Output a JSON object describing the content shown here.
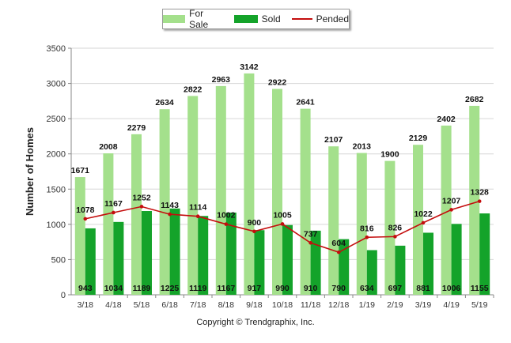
{
  "chart_data": {
    "type": "bar",
    "categories": [
      "3/18",
      "4/18",
      "5/18",
      "6/18",
      "7/18",
      "8/18",
      "9/18",
      "10/18",
      "11/18",
      "12/18",
      "1/19",
      "2/19",
      "3/19",
      "4/19",
      "5/19"
    ],
    "series": [
      {
        "name": "For Sale",
        "type": "bar",
        "color": "#a4e08c",
        "values": [
          1671,
          2008,
          2279,
          2634,
          2822,
          2963,
          3142,
          2922,
          2641,
          2107,
          2013,
          1900,
          2129,
          2402,
          2682
        ]
      },
      {
        "name": "Sold",
        "type": "bar",
        "color": "#14a32a",
        "values": [
          943,
          1034,
          1189,
          1225,
          1119,
          1167,
          917,
          990,
          910,
          790,
          634,
          697,
          881,
          1006,
          1155
        ]
      },
      {
        "name": "Pended",
        "type": "line",
        "color": "#c40d0d",
        "values": [
          1078,
          1167,
          1252,
          1143,
          1114,
          1002,
          900,
          1005,
          737,
          604,
          816,
          826,
          1022,
          1207,
          1328
        ]
      }
    ],
    "ylabel": "Number of Homes",
    "yticks": [
      0,
      500,
      1000,
      1500,
      2000,
      2500,
      3000,
      3500
    ],
    "ylim": [
      0,
      3500
    ],
    "legend_position": "top-center",
    "footer": "Copyright © Trendgraphix, Inc."
  }
}
